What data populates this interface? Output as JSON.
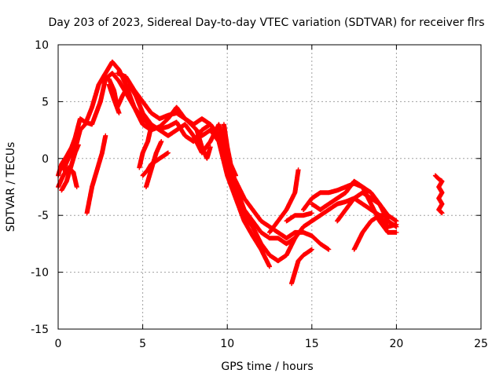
{
  "chart_data": {
    "type": "scatter",
    "title": "Day 203 of 2023, Sidereal Day-to-day VTEC variation (SDTVAR) for receiver flrs",
    "xlabel": "GPS time / hours",
    "ylabel": "SDTVAR / TECUs",
    "xlim": [
      0,
      25
    ],
    "ylim": [
      -15,
      10
    ],
    "xticks": [
      0,
      5,
      10,
      15,
      20,
      25
    ],
    "yticks": [
      -15,
      -10,
      -5,
      0,
      5,
      10
    ],
    "grid": true,
    "marker": "+",
    "color": "#ff0000",
    "series": [
      {
        "points": [
          [
            0,
            -1.5
          ],
          [
            0.2,
            -0.5
          ],
          [
            0.5,
            0.2
          ],
          [
            0.8,
            1.0
          ],
          [
            1.0,
            1.8
          ],
          [
            1.3,
            3.5
          ],
          [
            1.6,
            3.2
          ],
          [
            2.0,
            3.0
          ],
          [
            2.5,
            5.0
          ],
          [
            2.8,
            7.0
          ],
          [
            3.2,
            7.5
          ],
          [
            3.6,
            6.8
          ],
          [
            4.0,
            5.8
          ],
          [
            4.5,
            4.5
          ],
          [
            5.0,
            3.5
          ],
          [
            5.5,
            2.8
          ],
          [
            6.0,
            2.6
          ],
          [
            6.5,
            2.8
          ],
          [
            7.0,
            3.2
          ],
          [
            7.5,
            2.0
          ],
          [
            8.0,
            1.5
          ],
          [
            8.5,
            2.5
          ],
          [
            9.0,
            3.0
          ],
          [
            9.5,
            2.0
          ],
          [
            10.0,
            -1.0
          ],
          [
            10.5,
            -3.0
          ],
          [
            11.0,
            -5.0
          ],
          [
            11.5,
            -6.0
          ],
          [
            12.0,
            -7.5
          ],
          [
            12.5,
            -8.5
          ],
          [
            13.0,
            -9.0
          ],
          [
            13.5,
            -8.5
          ],
          [
            14.0,
            -7.0
          ],
          [
            14.5,
            -6.0
          ],
          [
            15.0,
            -5.5
          ],
          [
            15.5,
            -5.0
          ],
          [
            16.0,
            -4.5
          ],
          [
            16.5,
            -4.0
          ],
          [
            17.0,
            -3.8
          ],
          [
            17.5,
            -3.5
          ],
          [
            18.0,
            -4.0
          ],
          [
            18.5,
            -4.5
          ],
          [
            19.0,
            -5.0
          ],
          [
            19.5,
            -6.0
          ],
          [
            20.0,
            -5.8
          ]
        ]
      },
      {
        "points": [
          [
            0.3,
            -1.0
          ],
          [
            0.6,
            0.0
          ],
          [
            1.0,
            0.8
          ],
          [
            1.3,
            2.5
          ],
          [
            1.6,
            3.0
          ],
          [
            2.0,
            4.5
          ],
          [
            2.4,
            6.5
          ],
          [
            2.8,
            7.5
          ],
          [
            3.2,
            8.5
          ],
          [
            3.6,
            7.8
          ],
          [
            4.0,
            6.5
          ],
          [
            4.5,
            4.5
          ],
          [
            5.0,
            3.0
          ],
          [
            5.5,
            2.5
          ],
          [
            6.0,
            2.8
          ],
          [
            6.5,
            3.5
          ],
          [
            7.0,
            4.5
          ],
          [
            7.5,
            3.5
          ],
          [
            8.0,
            2.8
          ],
          [
            8.5,
            2.0
          ],
          [
            9.0,
            2.5
          ],
          [
            9.5,
            1.5
          ],
          [
            10.0,
            -1.5
          ],
          [
            10.5,
            -3.5
          ],
          [
            11.0,
            -5.5
          ],
          [
            11.5,
            -6.8
          ],
          [
            12.0,
            -8.0
          ],
          [
            12.5,
            -9.5
          ]
        ]
      },
      {
        "points": [
          [
            3.0,
            7.0
          ],
          [
            3.3,
            6.0
          ],
          [
            3.5,
            4.5
          ],
          [
            3.8,
            5.5
          ],
          [
            4.2,
            6.5
          ],
          [
            4.6,
            5.5
          ],
          [
            5.0,
            4.0
          ],
          [
            5.5,
            3.0
          ],
          [
            6.0,
            2.5
          ],
          [
            6.5,
            2.0
          ],
          [
            7.0,
            2.5
          ],
          [
            7.5,
            3.0
          ],
          [
            8.0,
            2.0
          ],
          [
            8.5,
            0.5
          ],
          [
            9.0,
            1.5
          ],
          [
            9.5,
            3.0
          ],
          [
            10.0,
            0.0
          ],
          [
            10.5,
            -2.5
          ],
          [
            11.0,
            -4.5
          ],
          [
            11.5,
            -5.5
          ],
          [
            12.0,
            -6.5
          ],
          [
            12.5,
            -7.0
          ],
          [
            13.0,
            -7.0
          ],
          [
            13.5,
            -7.5
          ],
          [
            14.0,
            -7.0
          ]
        ]
      },
      {
        "points": [
          [
            3.5,
            7.5
          ],
          [
            4.0,
            7.2
          ],
          [
            4.5,
            6.0
          ],
          [
            5.0,
            5.0
          ],
          [
            5.5,
            4.0
          ],
          [
            6.0,
            3.5
          ],
          [
            6.5,
            3.8
          ],
          [
            7.0,
            4.0
          ],
          [
            7.5,
            3.5
          ],
          [
            8.0,
            3.0
          ],
          [
            8.5,
            3.5
          ],
          [
            9.0,
            3.0
          ],
          [
            9.5,
            2.0
          ],
          [
            10.0,
            -0.5
          ],
          [
            10.5,
            -2.0
          ],
          [
            11.0,
            -3.5
          ],
          [
            11.5,
            -4.5
          ],
          [
            12.0,
            -5.5
          ],
          [
            12.5,
            -6.0
          ],
          [
            13.0,
            -6.5
          ],
          [
            13.5,
            -7.0
          ],
          [
            14.0,
            -6.5
          ],
          [
            14.5,
            -6.5
          ],
          [
            15.0,
            -6.8
          ],
          [
            15.5,
            -7.5
          ],
          [
            16.0,
            -8.0
          ]
        ]
      },
      {
        "points": [
          [
            1.7,
            -4.8
          ],
          [
            2.0,
            -2.5
          ],
          [
            2.3,
            -1.0
          ],
          [
            2.6,
            0.5
          ],
          [
            2.8,
            2.0
          ]
        ]
      },
      {
        "points": [
          [
            0,
            -2.5
          ],
          [
            0.3,
            -1.5
          ],
          [
            0.6,
            -0.8
          ],
          [
            0.9,
            -1.2
          ],
          [
            1.1,
            -2.5
          ]
        ]
      },
      {
        "points": [
          [
            0.2,
            -2.8
          ],
          [
            0.5,
            -2.0
          ],
          [
            0.8,
            -0.5
          ],
          [
            1.0,
            0.5
          ],
          [
            1.2,
            1.2
          ]
        ]
      },
      {
        "points": [
          [
            3.0,
            6.5
          ],
          [
            3.3,
            5.2
          ],
          [
            3.6,
            4.0
          ]
        ]
      },
      {
        "points": [
          [
            5.0,
            -1.5
          ],
          [
            5.3,
            -1.0
          ],
          [
            5.5,
            -0.5
          ],
          [
            6.0,
            0.0
          ],
          [
            6.5,
            0.5
          ]
        ]
      },
      {
        "points": [
          [
            4.8,
            -0.8
          ],
          [
            5.0,
            0.5
          ],
          [
            5.3,
            1.5
          ],
          [
            5.5,
            2.8
          ]
        ]
      },
      {
        "points": [
          [
            5.2,
            -2.5
          ],
          [
            5.5,
            -1.0
          ],
          [
            5.8,
            0.5
          ],
          [
            6.1,
            1.5
          ]
        ]
      },
      {
        "points": [
          [
            8.2,
            2.5
          ],
          [
            8.5,
            1.0
          ],
          [
            8.8,
            0.0
          ],
          [
            9.0,
            1.0
          ]
        ]
      },
      {
        "points": [
          [
            9.8,
            3.0
          ],
          [
            10.0,
            1.0
          ],
          [
            10.2,
            -0.5
          ],
          [
            10.5,
            -1.5
          ]
        ]
      },
      {
        "points": [
          [
            12.5,
            -6.5
          ],
          [
            13.0,
            -5.5
          ],
          [
            13.5,
            -4.5
          ],
          [
            14.0,
            -3.0
          ],
          [
            14.2,
            -1.0
          ]
        ]
      },
      {
        "points": [
          [
            13.5,
            -5.5
          ],
          [
            14.0,
            -5.0
          ],
          [
            14.5,
            -5.0
          ],
          [
            15.0,
            -4.8
          ]
        ]
      },
      {
        "points": [
          [
            13.8,
            -11.0
          ],
          [
            14.0,
            -10.0
          ],
          [
            14.2,
            -9.0
          ],
          [
            14.5,
            -8.5
          ],
          [
            15.0,
            -8.0
          ]
        ]
      },
      {
        "points": [
          [
            14.5,
            -4.5
          ],
          [
            15.0,
            -3.5
          ],
          [
            15.5,
            -3.0
          ],
          [
            16.0,
            -3.0
          ],
          [
            16.5,
            -2.8
          ],
          [
            17.0,
            -2.5
          ],
          [
            17.5,
            -2.2
          ],
          [
            18.0,
            -2.5
          ],
          [
            18.5,
            -3.0
          ],
          [
            19.0,
            -4.0
          ],
          [
            19.5,
            -5.5
          ],
          [
            20.0,
            -6.0
          ]
        ]
      },
      {
        "points": [
          [
            15.0,
            -4.0
          ],
          [
            15.5,
            -4.5
          ],
          [
            16.0,
            -4.0
          ],
          [
            16.5,
            -3.5
          ],
          [
            17.0,
            -3.0
          ],
          [
            17.5,
            -2.0
          ],
          [
            18.0,
            -2.5
          ],
          [
            18.5,
            -4.0
          ],
          [
            19.0,
            -5.5
          ],
          [
            19.5,
            -6.5
          ],
          [
            20.0,
            -6.5
          ]
        ]
      },
      {
        "points": [
          [
            16.5,
            -5.5
          ],
          [
            17.0,
            -4.5
          ],
          [
            17.5,
            -3.5
          ],
          [
            18.0,
            -3.0
          ],
          [
            18.5,
            -3.5
          ],
          [
            19.0,
            -4.0
          ],
          [
            19.5,
            -5.0
          ],
          [
            20.0,
            -5.5
          ]
        ]
      },
      {
        "points": [
          [
            17.5,
            -8.0
          ],
          [
            18.0,
            -6.5
          ],
          [
            18.5,
            -5.5
          ],
          [
            19.0,
            -5.0
          ],
          [
            19.5,
            -5.0
          ]
        ]
      },
      {
        "points": [
          [
            22.3,
            -1.5
          ],
          [
            22.5,
            -1.8
          ],
          [
            22.7,
            -2.0
          ],
          [
            22.5,
            -2.5
          ],
          [
            22.7,
            -3.0
          ],
          [
            22.5,
            -3.5
          ],
          [
            22.7,
            -4.0
          ],
          [
            22.5,
            -4.5
          ],
          [
            22.7,
            -4.8
          ]
        ]
      }
    ]
  }
}
